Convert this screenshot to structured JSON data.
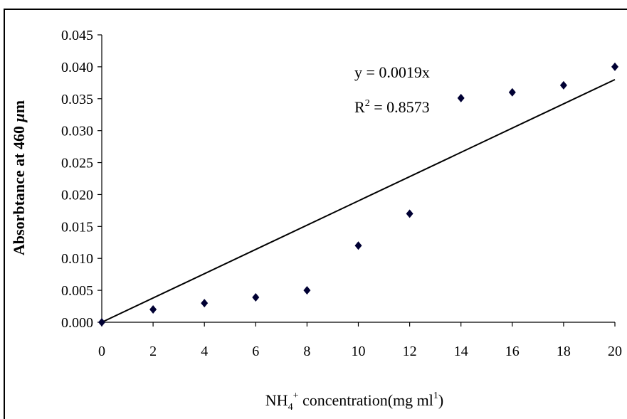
{
  "chart_data": {
    "type": "scatter",
    "xlabel": {
      "base": "NH",
      "sub": "4",
      "sup": "+",
      "rest": " concentration(mg ml",
      "rest_sup": "1",
      "end": ")"
    },
    "ylabel": {
      "text": "Absorbtance at 460 ",
      "mu": "μ",
      "unit": "m"
    },
    "xlim": [
      0,
      20
    ],
    "ylim": [
      0,
      0.045
    ],
    "x_ticks": [
      "0",
      "2",
      "4",
      "6",
      "8",
      "10",
      "12",
      "14",
      "16",
      "18",
      "20"
    ],
    "y_ticks": [
      "0.000",
      "0.005",
      "0.010",
      "0.015",
      "0.020",
      "0.025",
      "0.030",
      "0.035",
      "0.040",
      "0.045"
    ],
    "series": [
      {
        "marker": "diamond",
        "color": "#000033",
        "x": [
          0,
          2,
          4,
          6,
          8,
          10,
          12,
          14,
          16,
          18,
          20
        ],
        "y": [
          0.0,
          0.002,
          0.003,
          0.0039,
          0.005,
          0.012,
          0.017,
          0.0351,
          0.036,
          0.0371,
          0.04
        ]
      }
    ],
    "trendline": {
      "slope": 0.0019,
      "intercept": 0,
      "x_range": [
        0,
        20
      ]
    },
    "annotations": {
      "equation": "y = 0.0019x",
      "r2_base": "R",
      "r2_sup": "2",
      "r2_value": " = 0.8573"
    },
    "grid": false,
    "legend": "none"
  }
}
